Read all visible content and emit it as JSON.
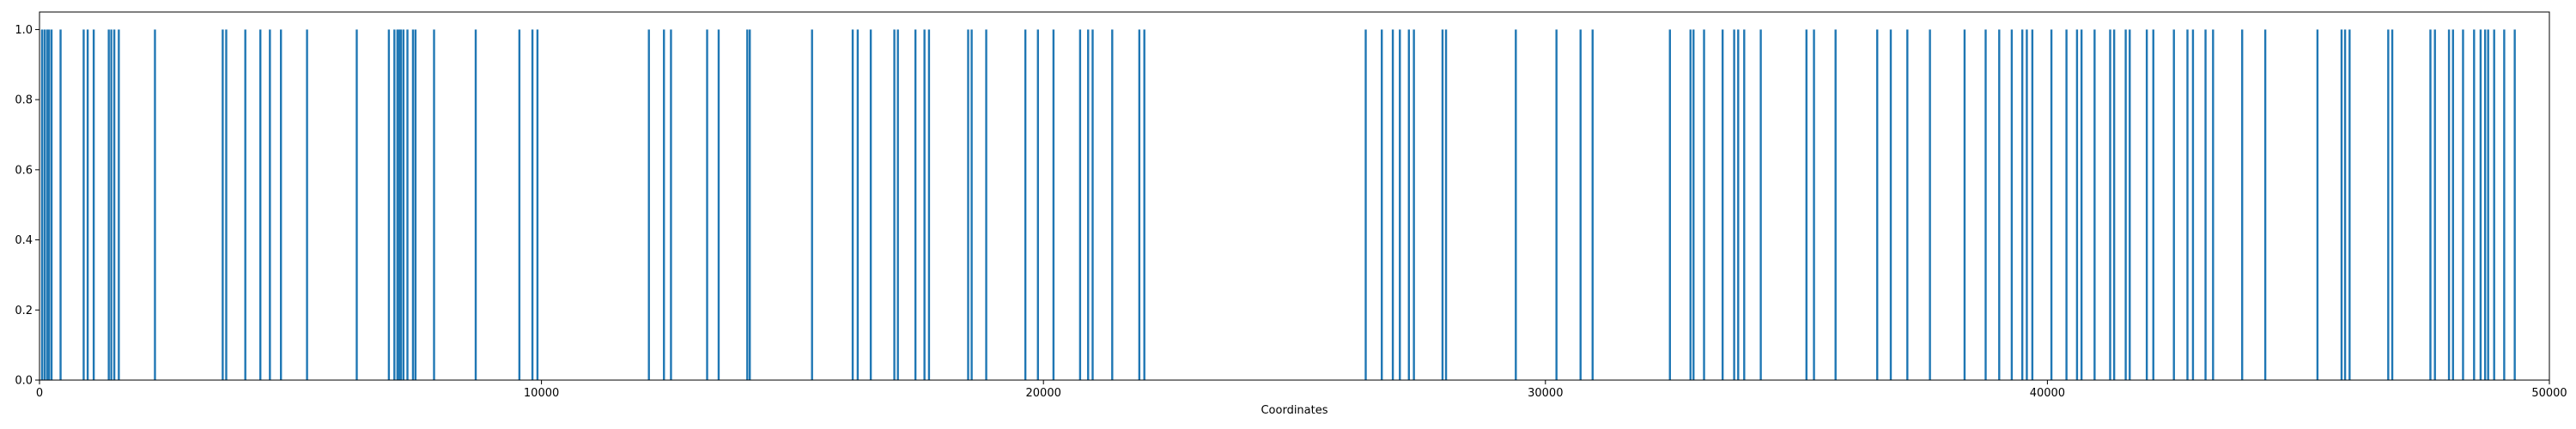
{
  "chart_data": {
    "type": "bar",
    "xlabel": "Coordinates",
    "ylabel": "",
    "xlim": [
      0,
      50000
    ],
    "ylim": [
      0,
      1.05
    ],
    "grid": false,
    "bar_color": "#1f77b4",
    "bar_value": 1.0,
    "x_ticks": [
      0,
      10000,
      20000,
      30000,
      40000,
      50000
    ],
    "x_tick_labels": [
      "0",
      "10000",
      "20000",
      "30000",
      "40000",
      "50000"
    ],
    "y_ticks": [
      0.0,
      0.2,
      0.4,
      0.6,
      0.8,
      1.0
    ],
    "y_tick_labels": [
      "0.0",
      "0.2",
      "0.4",
      "0.6",
      "0.8",
      "1.0"
    ],
    "positions": [
      50,
      100,
      150,
      190,
      240,
      420,
      880,
      960,
      1080,
      1380,
      1430,
      1490,
      1580,
      2300,
      3650,
      3720,
      4100,
      4400,
      4590,
      4810,
      5330,
      6320,
      6960,
      7070,
      7130,
      7170,
      7200,
      7250,
      7330,
      7440,
      7490,
      7860,
      8690,
      9560,
      9820,
      9920,
      12140,
      12440,
      12580,
      13300,
      13530,
      14100,
      14150,
      15390,
      16200,
      16300,
      16560,
      17030,
      17100,
      17450,
      17630,
      17720,
      18500,
      18570,
      18860,
      19640,
      19890,
      20200,
      20730,
      20890,
      20980,
      21370,
      21910,
      22010,
      26420,
      26740,
      26960,
      27100,
      27280,
      27380,
      27950,
      28020,
      29410,
      30220,
      30700,
      30940,
      32480,
      32890,
      32950,
      33160,
      33530,
      33760,
      33840,
      33960,
      34290,
      35200,
      35350,
      35780,
      36610,
      36880,
      37210,
      37660,
      38350,
      38770,
      39040,
      39290,
      39500,
      39590,
      39700,
      40080,
      40380,
      40590,
      40680,
      40940,
      41250,
      41330,
      41560,
      41640,
      41980,
      42110,
      42520,
      42790,
      42900,
      43150,
      43300,
      43880,
      44340,
      45380,
      45860,
      45930,
      46020,
      46790,
      46870,
      47630,
      47720,
      48000,
      48080,
      48280,
      48500,
      48630,
      48720,
      48780,
      48900,
      49100,
      49310
    ]
  }
}
